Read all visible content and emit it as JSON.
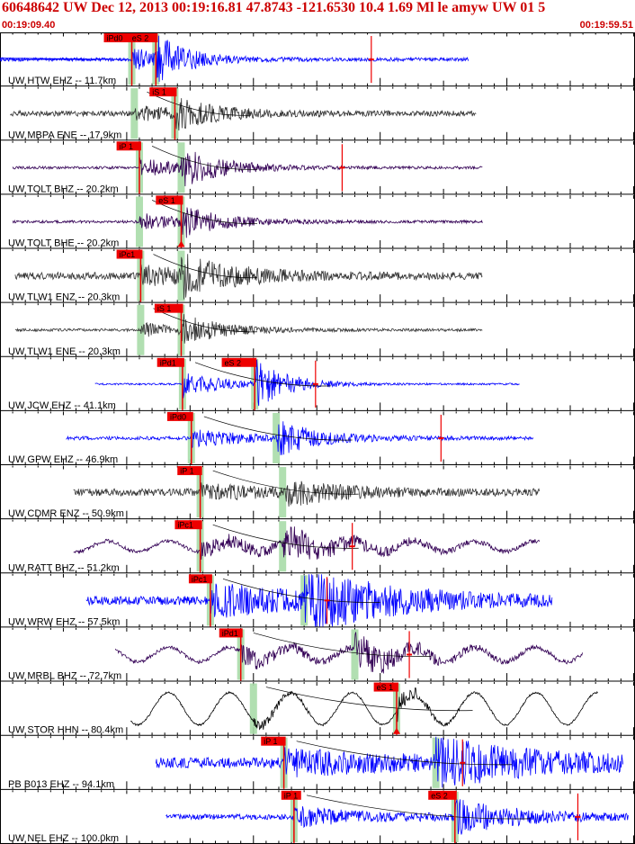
{
  "header": {
    "title": "60648642 UW Dec 12, 2013 00:19:16.81   47.8743 -121.6530 10.4 1.69 Ml le amyw UW 01   5",
    "time_start": "00:19:09.40",
    "time_end": "00:19:59.51"
  },
  "colors": {
    "pick_box": "#ee0000",
    "pick_window": "#a8dca8",
    "seis_blue": "#0000ff",
    "seis_gray": "#333333",
    "seis_purple": "#330055",
    "seis_black": "#000000",
    "header_text": "#cc0000"
  },
  "chart_data": {
    "type": "line",
    "x_unit": "seconds after 00:19:09.40",
    "xlim": [
      0,
      50.11
    ],
    "traces": [
      {
        "label": "UW HTW EHZ -- 11.7km",
        "color": "blue",
        "start": 0,
        "end": 37,
        "p": 10.4,
        "s": 12.3,
        "picks": [
          {
            "text": "iPd0",
            "t": 10.4
          },
          {
            "text": "eS 2",
            "t": 12.3
          }
        ],
        "pick_label_pos": [
          8.2,
          10.2
        ],
        "amp": 22,
        "noise": 2,
        "red_mark": 29.3,
        "period": 0.12,
        "decay": 3,
        "long_swing": 0,
        "pmark": "none"
      },
      {
        "label": "UW MBPA ENE -- 17.9km",
        "color": "gray",
        "start": 0.8,
        "end": 37.6,
        "p": 10.6,
        "s": 13.8,
        "picks": [
          {
            "text": "iS 1",
            "t": 13.8
          }
        ],
        "pick_label_pos": [
          11.8
        ],
        "amp": 14,
        "noise": 3,
        "red_mark": null,
        "period": 0.12,
        "decay": 4,
        "long_swing": 0,
        "pmark": "none"
      },
      {
        "label": "UW TOLT BHZ -- 20.2km",
        "color": "purple",
        "start": 1.0,
        "end": 38.1,
        "p": 11.0,
        "s": 14.3,
        "picks": [
          {
            "text": "iP 1",
            "t": 11.0
          }
        ],
        "pick_label_pos": [
          9.2
        ],
        "amp": 18,
        "noise": 1.5,
        "red_mark": 27.0,
        "period": 0.12,
        "decay": 4,
        "long_swing": 0,
        "pmark": "none"
      },
      {
        "label": "UW TOLT BHE -- 20.2km",
        "color": "purple",
        "start": 1.0,
        "end": 38.1,
        "p": 11.0,
        "s": 14.3,
        "picks": [
          {
            "text": "eS 1",
            "t": 14.3
          }
        ],
        "pick_label_pos": [
          12.3
        ],
        "amp": 16,
        "noise": 1.5,
        "red_mark": null,
        "period": 0.12,
        "decay": 4,
        "long_swing": 0,
        "pmark": "triangle"
      },
      {
        "label": "UW TLW1 ENZ -- 20.3km",
        "color": "gray",
        "start": 1.2,
        "end": 38.1,
        "p": 11.1,
        "s": 14.3,
        "picks": [
          {
            "text": "iPc1",
            "t": 11.1
          }
        ],
        "pick_label_pos": [
          9.2
        ],
        "amp": 18,
        "noise": 4,
        "red_mark": null,
        "period": 0.12,
        "decay": 5,
        "long_swing": 0,
        "pmark": "none"
      },
      {
        "label": "UW TLW1 ENE -- 20.3km",
        "color": "gray",
        "start": 1.2,
        "end": 38.1,
        "p": 11.1,
        "s": 14.3,
        "picks": [
          {
            "text": "iS 1",
            "t": 14.3
          }
        ],
        "pick_label_pos": [
          12.2
        ],
        "amp": 14,
        "noise": 1.5,
        "red_mark": null,
        "period": 0.12,
        "decay": 4,
        "long_swing": 0,
        "pmark": "none"
      },
      {
        "label": "UW JCW EHZ -- 41.1km",
        "color": "blue",
        "start": 7.5,
        "end": 41.0,
        "p": 14.4,
        "s": 20.1,
        "picks": [
          {
            "text": "iPd1",
            "t": 14.4
          },
          {
            "text": "eS 2",
            "t": 20.1
          }
        ],
        "pick_label_pos": [
          12.4,
          17.5
        ],
        "amp": 28,
        "noise": 1,
        "red_mark": 24.9,
        "period": 0.12,
        "decay": 3,
        "long_swing": 0,
        "pmark": "none"
      },
      {
        "label": "UW GPW EHZ -- 46.9km",
        "color": "blue",
        "start": 5.2,
        "end": 42.1,
        "p": 15.1,
        "s": 21.8,
        "picks": [
          {
            "text": "iPd0",
            "t": 15.1
          }
        ],
        "pick_label_pos": [
          13.2
        ],
        "amp": 18,
        "noise": 2,
        "red_mark": 34.8,
        "period": 0.12,
        "decay": 4,
        "long_swing": 0,
        "pmark": "none"
      },
      {
        "label": "UW CDMR ENZ -- 50.9km",
        "color": "gray",
        "start": 5.8,
        "end": 42.6,
        "p": 15.8,
        "s": 22.3,
        "picks": [
          {
            "text": "iP 1",
            "t": 15.8
          }
        ],
        "pick_label_pos": [
          14.0
        ],
        "amp": 14,
        "noise": 4,
        "red_mark": null,
        "period": 0.12,
        "decay": 5,
        "long_swing": 0,
        "pmark": "none"
      },
      {
        "label": "UW RATT BHZ -- 51.2km",
        "color": "purple",
        "start": 5.8,
        "end": 42.6,
        "p": 15.8,
        "s": 22.3,
        "picks": [
          {
            "text": "iPc1",
            "t": 15.8
          }
        ],
        "pick_label_pos": [
          13.8
        ],
        "amp": 16,
        "noise": 2,
        "red_mark": 27.8,
        "period": 0.12,
        "decay": 6,
        "long_swing": 6,
        "pmark": "none"
      },
      {
        "label": "UW WRW EHZ -- 57.5km",
        "color": "blue",
        "start": 6.8,
        "end": 43.6,
        "p": 16.6,
        "s": 24.0,
        "picks": [
          {
            "text": "iPc1",
            "t": 16.6
          }
        ],
        "pick_label_pos": [
          14.9
        ],
        "amp": 30,
        "noise": 5,
        "red_mark": 25.8,
        "period": 0.12,
        "decay": 8,
        "long_swing": 0,
        "pmark": "none"
      },
      {
        "label": "UW MRBL BHZ -- 72.7km",
        "color": "purple",
        "start": 9.1,
        "end": 46.0,
        "p": 19.0,
        "s": 28.0,
        "picks": [
          {
            "text": "iPd1",
            "t": 19.0
          }
        ],
        "pick_label_pos": [
          17.3
        ],
        "amp": 18,
        "noise": 2,
        "red_mark": 32.3,
        "period": 0.12,
        "decay": 5,
        "long_swing": 8,
        "pmark": "none"
      },
      {
        "label": "UW STOR HHN -- 80.4km",
        "color": "black",
        "start": 10.3,
        "end": 47.2,
        "p": 20.0,
        "s": 31.3,
        "picks": [
          {
            "text": "eS 1",
            "t": 31.3
          }
        ],
        "pick_label_pos": [
          29.5
        ],
        "amp": 14,
        "noise": 1,
        "red_mark": null,
        "period": 0.12,
        "decay": 2,
        "long_swing": 18,
        "pmark": "triangle"
      },
      {
        "label": "PB B013 EHZ -- 94.1km",
        "color": "blue",
        "start": 12.3,
        "end": 49.2,
        "p": 22.4,
        "s": 34.4,
        "picks": [
          {
            "text": "iP 1",
            "t": 22.4
          }
        ],
        "pick_label_pos": [
          20.6
        ],
        "amp": 22,
        "noise": 6,
        "red_mark": 36.5,
        "period": 0.12,
        "decay": 10,
        "long_swing": 0,
        "pmark": "none"
      },
      {
        "label": "UW NEL EHZ -- 100.0km",
        "color": "blue",
        "start": 13.1,
        "end": 49.6,
        "p": 23.2,
        "s": 35.9,
        "picks": [
          {
            "text": "iP 1",
            "t": 23.2
          },
          {
            "text": "eS 2",
            "t": 35.9
          }
        ],
        "pick_label_pos": [
          22.2,
          33.8
        ],
        "amp": 18,
        "noise": 3,
        "red_mark": 45.6,
        "period": 0.12,
        "decay": 6,
        "long_swing": 0,
        "pmark": "none"
      }
    ]
  }
}
